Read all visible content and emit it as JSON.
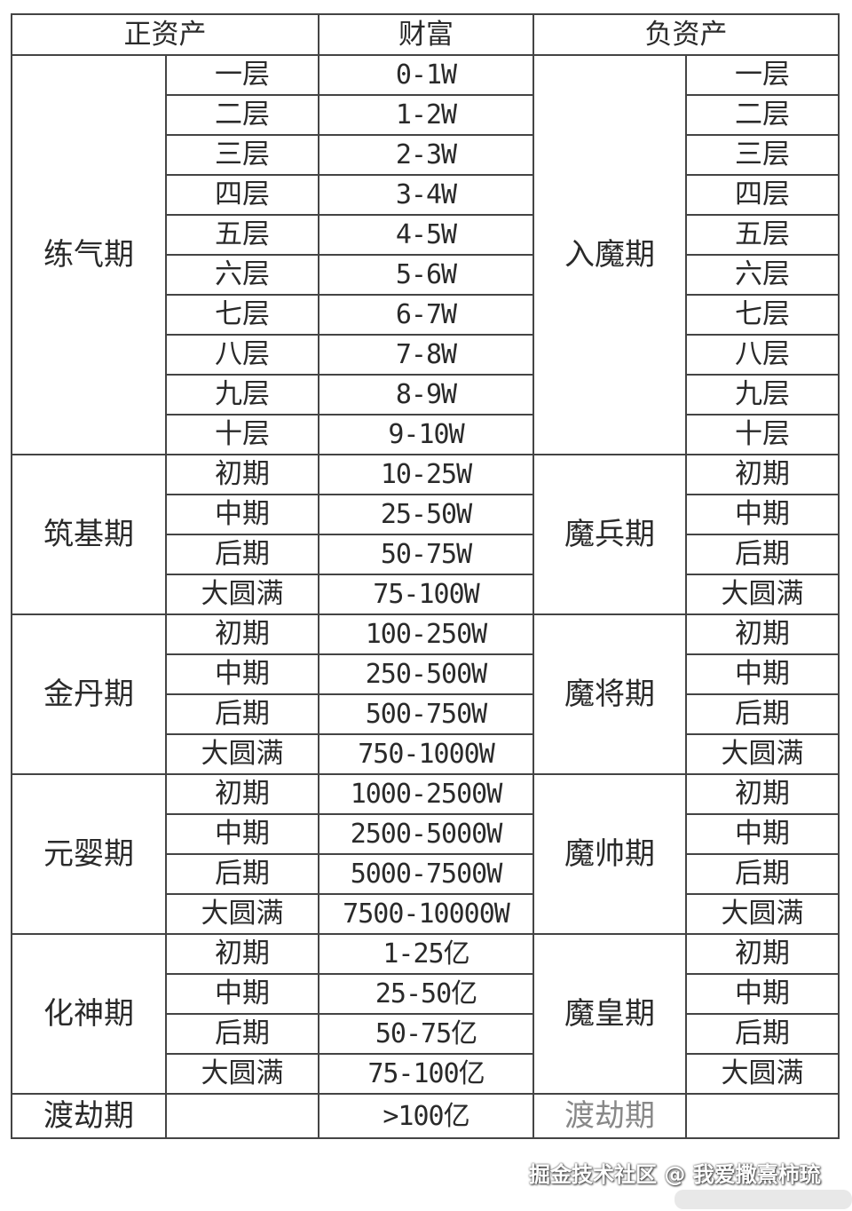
{
  "header": {
    "positive": "正资产",
    "wealth": "财富",
    "negative": "负资产"
  },
  "groups": [
    {
      "positive": "练气期",
      "negative": "入魔期",
      "rows": [
        {
          "sub": "一层",
          "wealth": "0-1W",
          "neg_sub": "一层"
        },
        {
          "sub": "二层",
          "wealth": "1-2W",
          "neg_sub": "二层"
        },
        {
          "sub": "三层",
          "wealth": "2-3W",
          "neg_sub": "三层"
        },
        {
          "sub": "四层",
          "wealth": "3-4W",
          "neg_sub": "四层"
        },
        {
          "sub": "五层",
          "wealth": "4-5W",
          "neg_sub": "五层"
        },
        {
          "sub": "六层",
          "wealth": "5-6W",
          "neg_sub": "六层"
        },
        {
          "sub": "七层",
          "wealth": "6-7W",
          "neg_sub": "七层"
        },
        {
          "sub": "八层",
          "wealth": "7-8W",
          "neg_sub": "八层"
        },
        {
          "sub": "九层",
          "wealth": "8-9W",
          "neg_sub": "九层"
        },
        {
          "sub": "十层",
          "wealth": "9-10W",
          "neg_sub": "十层"
        }
      ]
    },
    {
      "positive": "筑基期",
      "negative": "魔兵期",
      "rows": [
        {
          "sub": "初期",
          "wealth": "10-25W",
          "neg_sub": "初期"
        },
        {
          "sub": "中期",
          "wealth": "25-50W",
          "neg_sub": "中期"
        },
        {
          "sub": "后期",
          "wealth": "50-75W",
          "neg_sub": "后期"
        },
        {
          "sub": "大圆满",
          "wealth": "75-100W",
          "neg_sub": "大圆满"
        }
      ]
    },
    {
      "positive": "金丹期",
      "negative": "魔将期",
      "rows": [
        {
          "sub": "初期",
          "wealth": "100-250W",
          "neg_sub": "初期"
        },
        {
          "sub": "中期",
          "wealth": "250-500W",
          "neg_sub": "中期"
        },
        {
          "sub": "后期",
          "wealth": "500-750W",
          "neg_sub": "后期"
        },
        {
          "sub": "大圆满",
          "wealth": "750-1000W",
          "neg_sub": "大圆满"
        }
      ]
    },
    {
      "positive": "元婴期",
      "negative": "魔帅期",
      "rows": [
        {
          "sub": "初期",
          "wealth": "1000-2500W",
          "neg_sub": "初期"
        },
        {
          "sub": "中期",
          "wealth": "2500-5000W",
          "neg_sub": "中期"
        },
        {
          "sub": "后期",
          "wealth": "5000-7500W",
          "neg_sub": "后期"
        },
        {
          "sub": "大圆满",
          "wealth": "7500-10000W",
          "neg_sub": "大圆满"
        }
      ]
    },
    {
      "positive": "化神期",
      "negative": "魔皇期",
      "rows": [
        {
          "sub": "初期",
          "wealth": "1-25亿",
          "neg_sub": "初期"
        },
        {
          "sub": "中期",
          "wealth": "25-50亿",
          "neg_sub": "中期"
        },
        {
          "sub": "后期",
          "wealth": "50-75亿",
          "neg_sub": "后期"
        },
        {
          "sub": "大圆满",
          "wealth": "75-100亿",
          "neg_sub": "大圆满"
        }
      ]
    }
  ],
  "final_row": {
    "positive": "渡劫期",
    "wealth": ">100亿",
    "negative": "渡劫期"
  },
  "watermark": "掘金技术社区 @ 我爱撒熹柿琉"
}
